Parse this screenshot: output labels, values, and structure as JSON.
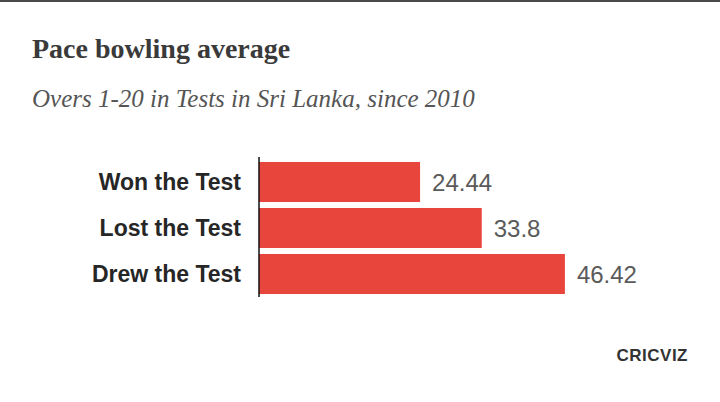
{
  "chart_data": {
    "type": "bar",
    "orientation": "horizontal",
    "title": "Pace bowling average",
    "subtitle": "Overs 1-20 in Tests in Sri Lanka, since 2010",
    "source": "CRICVIZ",
    "categories": [
      "Won the Test",
      "Lost the Test",
      "Drew the Test"
    ],
    "values": [
      24.44,
      33.8,
      46.42
    ],
    "color": "#e8453c",
    "xlim": [
      0,
      60
    ],
    "data_labels": true,
    "tick_labels": "y",
    "grid": false
  }
}
